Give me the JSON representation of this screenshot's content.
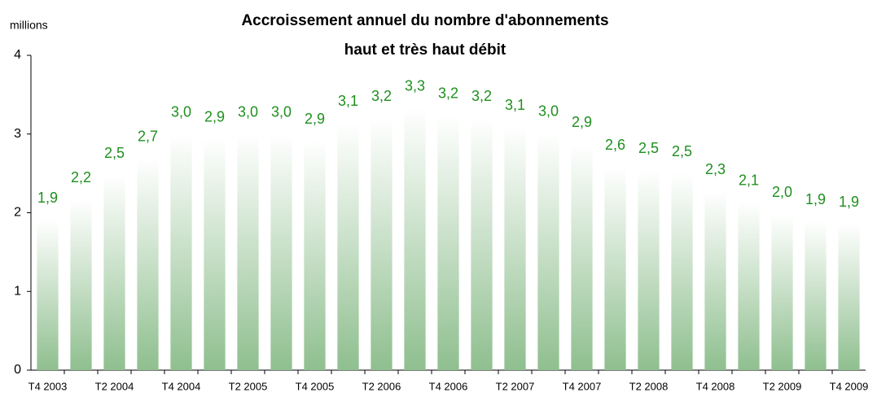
{
  "chart_data": {
    "type": "bar",
    "title": [
      "Accroissement annuel du nombre d'abonnements",
      "haut et très haut débit"
    ],
    "y_label": "millions",
    "categories": [
      "T4 2003",
      null,
      "T2 2004",
      null,
      "T4 2004",
      null,
      "T2 2005",
      null,
      "T4 2005",
      null,
      "T2 2006",
      null,
      "T4 2006",
      null,
      "T2 2007",
      null,
      "T4 2007",
      null,
      "T2 2008",
      null,
      "T4 2008",
      null,
      "T2 2009",
      null,
      "T4 2009"
    ],
    "values": [
      1.91,
      2.17,
      2.48,
      2.69,
      3.0,
      2.94,
      3.0,
      3.0,
      2.91,
      3.14,
      3.2,
      3.33,
      3.24,
      3.2,
      3.09,
      3.01,
      2.87,
      2.58,
      2.54,
      2.5,
      2.27,
      2.13,
      1.98,
      1.89,
      1.86
    ],
    "value_labels": [
      "1,9",
      "2,2",
      "2,5",
      "2,7",
      "3,0",
      "2,9",
      "3,0",
      "3,0",
      "2,9",
      "3,1",
      "3,2",
      "3,3",
      "3,2",
      "3,2",
      "3,1",
      "3,0",
      "2,9",
      "2,6",
      "2,5",
      "2,5",
      "2,3",
      "2,1",
      "2,0",
      "1,9",
      "1,9"
    ],
    "color": "#8fbf8f",
    "label_color": "#1f8f1f",
    "ylim": [
      0,
      4
    ],
    "yticks": [
      0,
      1,
      2,
      3,
      4
    ],
    "grid": false
  }
}
